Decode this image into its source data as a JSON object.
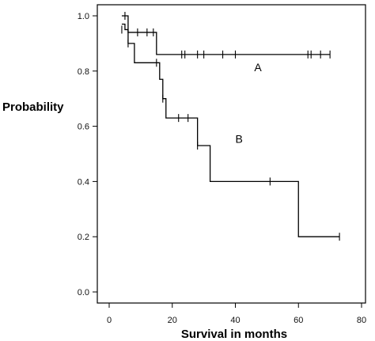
{
  "chart_data": {
    "type": "line",
    "subtype": "kaplan-meier step survival curves",
    "title": "",
    "xlabel": "Survival in months",
    "ylabel": "Probability",
    "xlim": [
      0,
      80
    ],
    "ylim": [
      0.0,
      1.0
    ],
    "xticks": [
      "0",
      "20",
      "40",
      "60",
      "80"
    ],
    "yticks": [
      "0.0",
      "0.2",
      "0.4",
      "0.6",
      "0.8",
      "1.0"
    ],
    "grid": false,
    "legend": "none",
    "series": [
      {
        "name": "A",
        "steps": [
          {
            "x": 4,
            "y": 1.0
          },
          {
            "x": 6,
            "y": 0.94
          },
          {
            "x": 15,
            "y": 0.86
          },
          {
            "x": 70,
            "y": 0.86
          }
        ],
        "censored": [
          {
            "x": 5,
            "y": 1.0
          },
          {
            "x": 9,
            "y": 0.94
          },
          {
            "x": 12,
            "y": 0.94
          },
          {
            "x": 14,
            "y": 0.94
          },
          {
            "x": 23,
            "y": 0.86
          },
          {
            "x": 24,
            "y": 0.86
          },
          {
            "x": 28,
            "y": 0.86
          },
          {
            "x": 30,
            "y": 0.86
          },
          {
            "x": 36,
            "y": 0.86
          },
          {
            "x": 40,
            "y": 0.86
          },
          {
            "x": 63,
            "y": 0.86
          },
          {
            "x": 64,
            "y": 0.86
          },
          {
            "x": 67,
            "y": 0.86
          },
          {
            "x": 70,
            "y": 0.86
          }
        ],
        "label_position": {
          "x": 46,
          "y": 0.8
        }
      },
      {
        "name": "B",
        "steps": [
          {
            "x": 4,
            "y": 0.97
          },
          {
            "x": 5,
            "y": 0.95
          },
          {
            "x": 6,
            "y": 0.9
          },
          {
            "x": 8,
            "y": 0.83
          },
          {
            "x": 16,
            "y": 0.77
          },
          {
            "x": 17,
            "y": 0.7
          },
          {
            "x": 18,
            "y": 0.63
          },
          {
            "x": 28,
            "y": 0.53
          },
          {
            "x": 32,
            "y": 0.4
          },
          {
            "x": 60,
            "y": 0.2
          },
          {
            "x": 73,
            "y": 0.2
          }
        ],
        "censored": [
          {
            "x": 4,
            "y": 0.95
          },
          {
            "x": 6,
            "y": 0.9
          },
          {
            "x": 15,
            "y": 0.83
          },
          {
            "x": 17,
            "y": 0.7
          },
          {
            "x": 22,
            "y": 0.63
          },
          {
            "x": 25,
            "y": 0.63
          },
          {
            "x": 28,
            "y": 0.53
          },
          {
            "x": 51,
            "y": 0.4
          },
          {
            "x": 73,
            "y": 0.2
          }
        ],
        "label_position": {
          "x": 40,
          "y": 0.54
        }
      }
    ]
  }
}
